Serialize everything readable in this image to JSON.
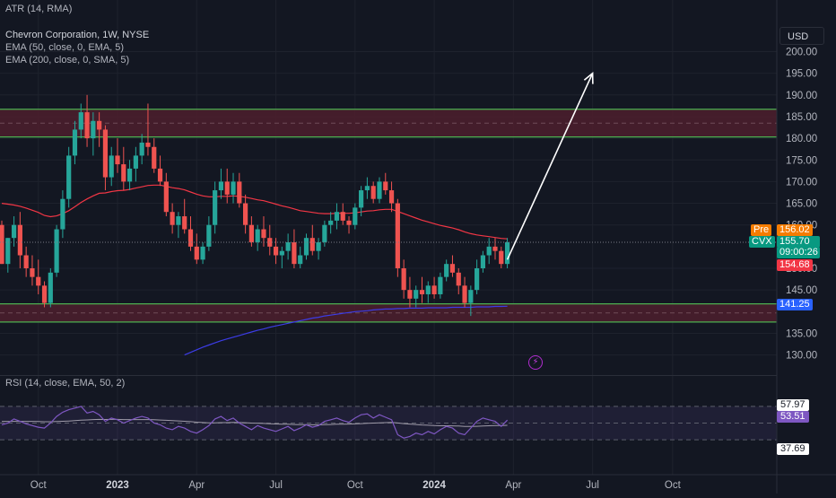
{
  "header": {
    "atr_label": "ATR (14, RMA)",
    "title": "Chevron Corporation, 1W, NYSE",
    "ema50_label": "EMA (50, close, 0, EMA, 5)",
    "ema200_label": "EMA (200, close, 0, SMA, 5)",
    "currency": "USD"
  },
  "price_axis": {
    "ticks": [
      "200.00",
      "195.00",
      "190.00",
      "185.00",
      "180.00",
      "175.00",
      "170.00",
      "165.00",
      "160.00",
      "150.00",
      "145.00",
      "135.00",
      "130.00"
    ]
  },
  "time_axis": {
    "ticks": [
      "Oct",
      "2023",
      "Apr",
      "Jul",
      "Oct",
      "2024",
      "Apr",
      "Jul",
      "Oct"
    ]
  },
  "tags": {
    "pre_label": "Pre",
    "pre_value": "156.02",
    "symbol": "CVX",
    "last_price": "155.70",
    "countdown": "09:00:26",
    "low_value": "154.68",
    "ema200_value": "141.25"
  },
  "rsi": {
    "label": "RSI (14, close, EMA, 50, 2)",
    "value_ma": "57.97",
    "value_rsi": "53.51",
    "value_low": "37.69"
  },
  "colors": {
    "background": "#131722",
    "up": "#26a69a",
    "down": "#ef5350",
    "ema50": "#f23645",
    "ema200": "#3c3ce6",
    "zone_line": "#4caf50",
    "zone_fill": "#4a1e2c",
    "rsi_line": "#7e57c2",
    "pre_tag": "#f57c00",
    "ema200_tag": "#2962ff",
    "arrow": "#ffffff"
  },
  "chart_data": {
    "type": "candlestick",
    "title": "Chevron Corporation, 1W, NYSE",
    "ylim": [
      125,
      202
    ],
    "zones": [
      {
        "name": "resistance",
        "low": 180.3,
        "high": 186.7
      },
      {
        "name": "support",
        "low": 137.6,
        "high": 141.8
      }
    ],
    "arrow": {
      "from": {
        "date": "2024-03-25",
        "price": 152
      },
      "to": {
        "date": "2024-07-01",
        "price": 195
      }
    },
    "candles": [
      [
        160,
        161,
        151,
        151
      ],
      [
        151,
        157,
        149,
        157
      ],
      [
        157,
        162,
        155,
        160
      ],
      [
        160,
        163,
        150,
        153
      ],
      [
        153,
        155,
        148,
        150
      ],
      [
        150,
        153,
        146,
        148
      ],
      [
        148,
        152,
        144,
        146
      ],
      [
        146,
        147,
        141,
        142
      ],
      [
        142,
        150,
        141,
        149
      ],
      [
        149,
        160,
        148,
        159
      ],
      [
        159,
        168,
        157,
        166
      ],
      [
        166,
        178,
        164,
        176
      ],
      [
        176,
        184,
        174,
        182
      ],
      [
        182,
        188,
        180,
        186
      ],
      [
        186,
        190,
        178,
        180
      ],
      [
        180,
        186,
        176,
        184
      ],
      [
        184,
        186,
        178,
        182
      ],
      [
        182,
        183,
        168,
        171
      ],
      [
        171,
        178,
        169,
        176
      ],
      [
        176,
        180,
        172,
        174
      ],
      [
        174,
        178,
        168,
        170
      ],
      [
        170,
        175,
        168,
        173
      ],
      [
        173,
        178,
        170,
        176
      ],
      [
        176,
        181,
        174,
        179
      ],
      [
        179,
        188,
        176,
        178
      ],
      [
        178,
        180,
        172,
        173
      ],
      [
        173,
        176,
        169,
        170
      ],
      [
        170,
        172,
        162,
        163
      ],
      [
        163,
        165,
        158,
        160
      ],
      [
        160,
        163,
        157,
        162
      ],
      [
        162,
        166,
        158,
        159
      ],
      [
        159,
        162,
        154,
        155
      ],
      [
        155,
        158,
        151,
        152
      ],
      [
        152,
        156,
        151,
        155
      ],
      [
        155,
        162,
        154,
        160
      ],
      [
        160,
        170,
        158,
        168
      ],
      [
        168,
        173,
        166,
        170
      ],
      [
        170,
        173,
        165,
        167
      ],
      [
        167,
        172,
        165,
        170
      ],
      [
        170,
        172,
        164,
        165
      ],
      [
        165,
        167,
        158,
        160
      ],
      [
        160,
        162,
        155,
        156
      ],
      [
        156,
        160,
        154,
        159
      ],
      [
        159,
        162,
        155,
        157
      ],
      [
        157,
        160,
        153,
        155
      ],
      [
        155,
        157,
        151,
        153
      ],
      [
        153,
        155,
        150,
        154
      ],
      [
        154,
        158,
        152,
        156
      ],
      [
        156,
        159,
        150,
        151
      ],
      [
        151,
        155,
        150,
        153
      ],
      [
        153,
        158,
        152,
        157
      ],
      [
        157,
        160,
        153,
        154
      ],
      [
        154,
        157,
        152,
        156
      ],
      [
        156,
        161,
        155,
        160
      ],
      [
        160,
        163,
        158,
        161
      ],
      [
        161,
        165,
        159,
        163
      ],
      [
        163,
        165,
        160,
        161
      ],
      [
        161,
        162,
        158,
        160
      ],
      [
        160,
        165,
        159,
        164
      ],
      [
        164,
        169,
        162,
        168
      ],
      [
        168,
        171,
        166,
        169
      ],
      [
        169,
        170,
        165,
        166
      ],
      [
        166,
        171,
        165,
        170
      ],
      [
        170,
        172,
        167,
        168
      ],
      [
        168,
        170,
        163,
        165
      ],
      [
        165,
        166,
        148,
        150
      ],
      [
        150,
        152,
        143,
        145
      ],
      [
        145,
        148,
        141,
        143
      ],
      [
        143,
        146,
        141,
        145
      ],
      [
        145,
        148,
        142,
        144
      ],
      [
        144,
        147,
        142,
        146
      ],
      [
        146,
        148,
        143,
        144
      ],
      [
        144,
        149,
        143,
        148
      ],
      [
        148,
        152,
        147,
        151
      ],
      [
        151,
        153,
        148,
        149
      ],
      [
        149,
        150,
        144,
        146
      ],
      [
        146,
        148,
        141,
        142
      ],
      [
        142,
        146,
        139,
        145
      ],
      [
        145,
        152,
        144,
        150
      ],
      [
        150,
        154,
        149,
        153
      ],
      [
        153,
        157,
        151,
        155
      ],
      [
        155,
        157,
        152,
        154
      ],
      [
        154,
        155,
        150,
        151
      ],
      [
        151,
        157,
        150,
        156
      ]
    ],
    "ema50": [
      165,
      164.8,
      164.6,
      164.3,
      163.9,
      163.4,
      162.9,
      162.2,
      161.9,
      162.1,
      162.6,
      163.3,
      164.2,
      165.2,
      166,
      166.7,
      167.3,
      167.4,
      167.7,
      167.9,
      168,
      168.2,
      168.5,
      168.8,
      169.1,
      169.2,
      169.2,
      168.9,
      168.6,
      168.4,
      168.1,
      167.6,
      167.1,
      166.7,
      166.5,
      166.5,
      166.6,
      166.6,
      166.7,
      166.6,
      166.4,
      166.1,
      165.8,
      165.6,
      165.2,
      164.8,
      164.4,
      164.1,
      163.7,
      163.3,
      163.1,
      162.9,
      162.7,
      162.6,
      162.6,
      162.7,
      162.7,
      162.7,
      162.8,
      163,
      163.2,
      163.3,
      163.5,
      163.6,
      163.6,
      163.1,
      162.6,
      162.1,
      161.6,
      161.1,
      160.7,
      160.3,
      159.9,
      159.6,
      159.3,
      158.9,
      158.4,
      158,
      157.7,
      157.5,
      157.3,
      157.1,
      156.9,
      156.8
    ],
    "ema200": [
      null,
      null,
      null,
      null,
      null,
      null,
      null,
      null,
      null,
      null,
      null,
      null,
      null,
      null,
      null,
      null,
      null,
      null,
      null,
      null,
      null,
      null,
      null,
      null,
      null,
      null,
      null,
      null,
      null,
      null,
      130,
      130.6,
      131.2,
      131.8,
      132.3,
      132.8,
      133.3,
      133.7,
      134.1,
      134.5,
      134.9,
      135.3,
      135.7,
      136,
      136.4,
      136.7,
      137,
      137.3,
      137.6,
      137.9,
      138.2,
      138.5,
      138.7,
      139,
      139.2,
      139.4,
      139.6,
      139.8,
      140,
      140.1,
      140.2,
      140.4,
      140.5,
      140.6,
      140.6,
      140.7,
      140.7,
      140.8,
      140.8,
      140.8,
      140.9,
      140.9,
      140.9,
      140.9,
      141,
      141,
      141,
      141,
      141.1,
      141.1,
      141.1,
      141.2,
      141.2,
      141.25
    ],
    "rsi": [
      48,
      50,
      55,
      52,
      49,
      47,
      45,
      44,
      50,
      58,
      63,
      66,
      68,
      70,
      62,
      64,
      60,
      52,
      56,
      54,
      50,
      53,
      56,
      58,
      56,
      50,
      48,
      44,
      42,
      46,
      44,
      40,
      38,
      42,
      47,
      55,
      58,
      53,
      56,
      50,
      46,
      42,
      47,
      44,
      42,
      40,
      43,
      46,
      41,
      44,
      48,
      45,
      47,
      52,
      54,
      56,
      53,
      51,
      56,
      60,
      61,
      56,
      60,
      57,
      54,
      36,
      32,
      34,
      38,
      36,
      40,
      37,
      42,
      46,
      44,
      38,
      36,
      44,
      52,
      56,
      54,
      52,
      46,
      53.51
    ],
    "rsi_ma": [
      52,
      52,
      52,
      52,
      52,
      52,
      51.8,
      51.6,
      51.6,
      51.8,
      52.1,
      52.5,
      52.9,
      53.4,
      53.8,
      54.2,
      54.4,
      54.3,
      54.4,
      54.4,
      54.2,
      54.2,
      54.2,
      54.2,
      54.2,
      54,
      53.7,
      53.3,
      52.9,
      52.6,
      52.2,
      51.7,
      51.1,
      50.6,
      50.3,
      50.3,
      50.5,
      50.5,
      50.7,
      50.6,
      50.4,
      50,
      49.9,
      49.6,
      49.3,
      48.9,
      48.7,
      48.6,
      48.3,
      48.1,
      48.1,
      48,
      47.9,
      48.1,
      48.3,
      48.6,
      48.7,
      48.8,
      49,
      49.4,
      49.8,
      50,
      50.3,
      50.5,
      50.7,
      50.1,
      49.4,
      48.8,
      48.3,
      47.7,
      47.4,
      47,
      46.8,
      46.8,
      46.7,
      46.4,
      46,
      45.9,
      46.1,
      46.5,
      46.8,
      47,
      47,
      47.3
    ]
  }
}
